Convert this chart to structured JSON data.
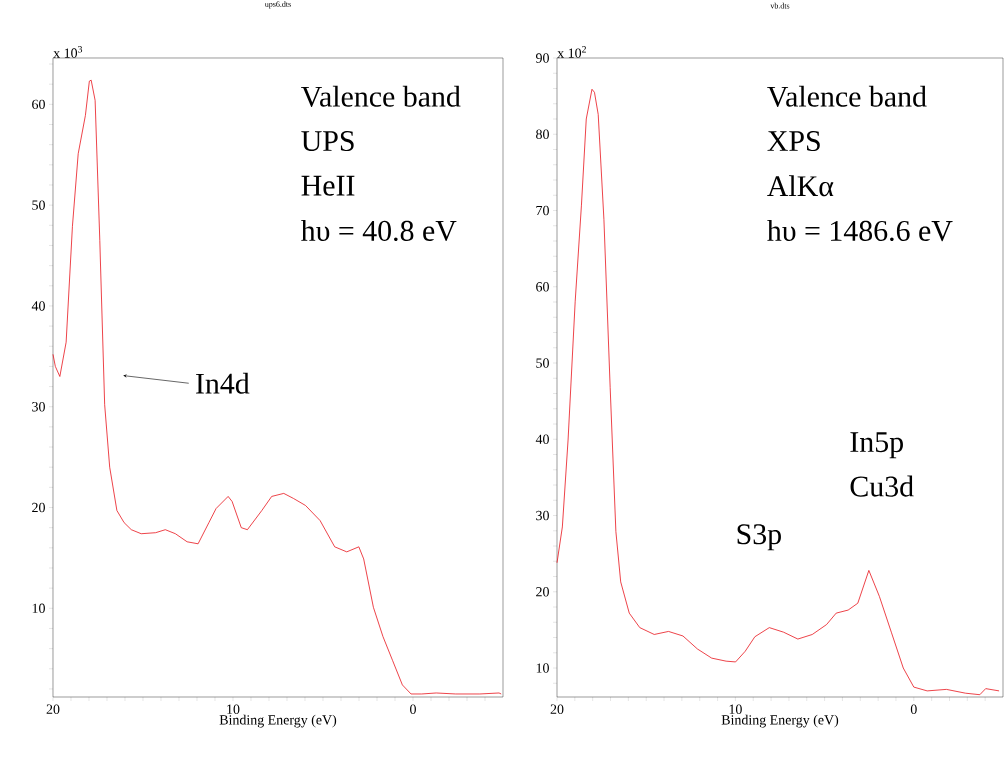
{
  "chart_data": [
    {
      "type": "line",
      "title": "ups6.dts",
      "xlabel": "Binding Energy (eV)",
      "ylabel": "x 10$^{3}$",
      "x": [
        20,
        19.87,
        19.62,
        19.27,
        18.92,
        18.6,
        18.2,
        17.98,
        17.88,
        17.66,
        17.4,
        17.13,
        16.85,
        16.45,
        16.05,
        15.65,
        15.1,
        14.3,
        13.76,
        13.2,
        12.55,
        11.94,
        11.34,
        10.94,
        10.27,
        10.05,
        9.54,
        9.2,
        8.4,
        7.85,
        7.18,
        6.64,
        5.97,
        5.16,
        4.35,
        3.68,
        3.01,
        2.74,
        2.2,
        1.67,
        1.13,
        0.59,
        0.11,
        -0.48,
        -1.29,
        -2.37,
        -3.71,
        -4.78,
        -4.9
      ],
      "series": [
        {
          "color": "#e8141c",
          "values": [
            35.2,
            34.0,
            33.0,
            36.4,
            47.9,
            55.1,
            58.9,
            62.3,
            62.4,
            60.4,
            46.5,
            30.2,
            24.0,
            19.7,
            18.5,
            17.8,
            17.4,
            17.5,
            17.8,
            17.4,
            16.6,
            16.4,
            18.5,
            19.9,
            21.1,
            20.6,
            18.0,
            17.8,
            19.7,
            21.1,
            21.4,
            20.9,
            20.2,
            18.7,
            16.1,
            15.6,
            16.1,
            14.9,
            10.1,
            7.2,
            4.8,
            2.4,
            1.5,
            1.5,
            1.6,
            1.5,
            1.5,
            1.6,
            1.5
          ]
        }
      ],
      "xlim": [
        20,
        -5
      ],
      "ylim": [
        1.2,
        64.6
      ],
      "xticks": [
        20,
        {
          "value": 19,
          "label": null
        },
        {
          "value": 18,
          "label": null
        },
        {
          "value": 17,
          "label": null
        },
        {
          "value": 16,
          "label": null
        },
        {
          "value": 15,
          "label": null
        },
        {
          "value": 14,
          "label": null
        },
        {
          "value": 13,
          "label": null
        },
        {
          "value": 12,
          "label": null
        },
        {
          "value": 11,
          "label": null
        },
        10,
        {
          "value": 9,
          "label": null
        },
        {
          "value": 8,
          "label": null
        },
        {
          "value": 7,
          "label": null
        },
        {
          "value": 6,
          "label": null
        },
        {
          "value": 5,
          "label": null
        },
        {
          "value": 4,
          "label": null
        },
        {
          "value": 3,
          "label": null
        },
        {
          "value": 2,
          "label": null
        },
        {
          "value": 1,
          "label": null
        },
        0,
        {
          "value": -1,
          "label": null
        },
        {
          "value": -2,
          "label": null
        },
        {
          "value": -3,
          "label": null
        },
        {
          "value": -4,
          "label": null
        }
      ],
      "yticks": [
        {
          "value": 2,
          "label": null
        },
        {
          "value": 4,
          "label": null
        },
        {
          "value": 6,
          "label": null
        },
        {
          "value": 8,
          "label": null
        },
        10,
        {
          "value": 12,
          "label": null
        },
        {
          "value": 14,
          "label": null
        },
        {
          "value": 16,
          "label": null
        },
        {
          "value": 18,
          "label": null
        },
        20,
        {
          "value": 22,
          "label": null
        },
        {
          "value": 24,
          "label": null
        },
        {
          "value": 26,
          "label": null
        },
        {
          "value": 28,
          "label": null
        },
        30,
        {
          "value": 32,
          "label": null
        },
        {
          "value": 34,
          "label": null
        },
        {
          "value": 36,
          "label": null
        },
        {
          "value": 38,
          "label": null
        },
        40,
        {
          "value": 42,
          "label": null
        },
        {
          "value": 44,
          "label": null
        },
        {
          "value": 46,
          "label": null
        },
        {
          "value": 48,
          "label": null
        },
        50,
        {
          "value": 52,
          "label": null
        },
        {
          "value": 54,
          "label": null
        },
        {
          "value": 56,
          "label": null
        },
        {
          "value": 58,
          "label": null
        },
        60,
        {
          "value": 62,
          "label": null
        },
        {
          "value": 64,
          "label": null
        }
      ],
      "annotations": [
        "Valence band",
        "UPS",
        "HeII",
        "hυ = 40.8 eV",
        "In4d"
      ]
    },
    {
      "type": "line",
      "title": "vb.dts",
      "xlabel": "Binding Energy (eV)",
      "ylabel": "x 10$^{2}$",
      "x": [
        20,
        19.7,
        19.38,
        18.98,
        18.63,
        18.36,
        18.04,
        17.9,
        17.69,
        17.37,
        17.02,
        16.7,
        16.43,
        15.95,
        15.36,
        14.55,
        13.75,
        12.94,
        12.13,
        11.33,
        10.52,
        9.99,
        9.45,
        8.91,
        8.1,
        7.3,
        6.5,
        5.69,
        4.89,
        4.35,
        3.68,
        3.14,
        2.52,
        1.93,
        1.26,
        0.59,
        0,
        -0.75,
        -1.83,
        -2.9,
        -3.7,
        -4.03,
        -4.78
      ],
      "series": [
        {
          "color": "#e8141c",
          "values": [
            23.8,
            28.5,
            39.9,
            58.1,
            70.7,
            82.0,
            85.9,
            85.5,
            82.6,
            68.8,
            46.8,
            27.9,
            21.3,
            17.2,
            15.3,
            14.4,
            14.8,
            14.2,
            12.5,
            11.3,
            10.9,
            10.8,
            12.2,
            14.1,
            15.3,
            14.7,
            13.8,
            14.4,
            15.7,
            17.2,
            17.6,
            18.5,
            22.8,
            19.4,
            14.7,
            10.0,
            7.5,
            7.0,
            7.2,
            6.7,
            6.5,
            7.3,
            7.0
          ]
        }
      ],
      "xlim": [
        20,
        -5
      ],
      "ylim": [
        6.2,
        90
      ],
      "xticks": [
        20,
        {
          "value": 19,
          "label": null
        },
        {
          "value": 18,
          "label": null
        },
        {
          "value": 17,
          "label": null
        },
        {
          "value": 16,
          "label": null
        },
        {
          "value": 15,
          "label": null
        },
        {
          "value": 14,
          "label": null
        },
        {
          "value": 13,
          "label": null
        },
        {
          "value": 12,
          "label": null
        },
        {
          "value": 11,
          "label": null
        },
        10,
        {
          "value": 9,
          "label": null
        },
        {
          "value": 8,
          "label": null
        },
        {
          "value": 7,
          "label": null
        },
        {
          "value": 6,
          "label": null
        },
        {
          "value": 5,
          "label": null
        },
        {
          "value": 4,
          "label": null
        },
        {
          "value": 3,
          "label": null
        },
        {
          "value": 2,
          "label": null
        },
        {
          "value": 1,
          "label": null
        },
        0,
        {
          "value": -1,
          "label": null
        },
        {
          "value": -2,
          "label": null
        },
        {
          "value": -3,
          "label": null
        },
        {
          "value": -4,
          "label": null
        }
      ],
      "yticks": [
        {
          "value": 8,
          "label": null
        },
        10,
        {
          "value": 12,
          "label": null
        },
        {
          "value": 14,
          "label": null
        },
        {
          "value": 16,
          "label": null
        },
        {
          "value": 18,
          "label": null
        },
        20,
        {
          "value": 22,
          "label": null
        },
        {
          "value": 24,
          "label": null
        },
        {
          "value": 26,
          "label": null
        },
        {
          "value": 28,
          "label": null
        },
        30,
        {
          "value": 32,
          "label": null
        },
        {
          "value": 34,
          "label": null
        },
        {
          "value": 36,
          "label": null
        },
        {
          "value": 38,
          "label": null
        },
        40,
        {
          "value": 42,
          "label": null
        },
        {
          "value": 44,
          "label": null
        },
        {
          "value": 46,
          "label": null
        },
        {
          "value": 48,
          "label": null
        },
        50,
        {
          "value": 52,
          "label": null
        },
        {
          "value": 54,
          "label": null
        },
        {
          "value": 56,
          "label": null
        },
        {
          "value": 58,
          "label": null
        },
        60,
        {
          "value": 62,
          "label": null
        },
        {
          "value": 64,
          "label": null
        },
        {
          "value": 66,
          "label": null
        },
        {
          "value": 68,
          "label": null
        },
        70,
        {
          "value": 72,
          "label": null
        },
        {
          "value": 74,
          "label": null
        },
        {
          "value": 76,
          "label": null
        },
        {
          "value": 78,
          "label": null
        },
        80,
        {
          "value": 82,
          "label": null
        },
        {
          "value": 84,
          "label": null
        },
        {
          "value": 86,
          "label": null
        },
        {
          "value": 88,
          "label": null
        },
        90
      ],
      "annotations": [
        "Valence band",
        "XPS",
        "AlKα",
        "hυ = 1486.6 eV",
        "In5p",
        "Cu3d",
        "S3p"
      ]
    }
  ]
}
